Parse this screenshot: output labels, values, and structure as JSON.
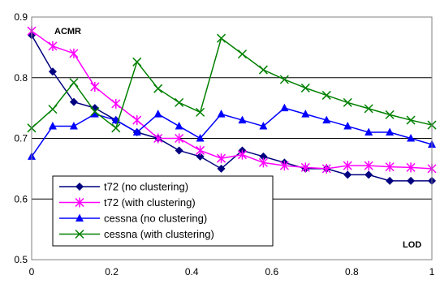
{
  "chart_data": {
    "type": "line",
    "title": "",
    "xlabel": "LOD",
    "ylabel": "ACMR",
    "xlim": [
      0,
      1
    ],
    "ylim": [
      0.5,
      0.9
    ],
    "x_ticks": [
      "0",
      "0.2",
      "0.4",
      "0.6",
      "0.8",
      "1"
    ],
    "y_ticks": [
      "0.5",
      "0.6",
      "0.7",
      "0.8",
      "0.9"
    ],
    "grid": "horizontal",
    "legend_position": "bottom-left",
    "x": [
      0,
      0.0526,
      0.1053,
      0.1579,
      0.2105,
      0.2632,
      0.3158,
      0.3684,
      0.4211,
      0.4737,
      0.5263,
      0.5789,
      0.6316,
      0.6842,
      0.7368,
      0.7895,
      0.8421,
      0.8947,
      0.9474,
      1.0
    ],
    "series": [
      {
        "name": "t72 (no clustering)",
        "color": "#000080",
        "marker": "diamond",
        "values": [
          0.87,
          0.81,
          0.76,
          0.75,
          0.73,
          0.71,
          0.7,
          0.68,
          0.67,
          0.65,
          0.68,
          0.67,
          0.66,
          0.65,
          0.65,
          0.64,
          0.64,
          0.63,
          0.63,
          0.63
        ]
      },
      {
        "name": "t72 (with clustering)",
        "color": "#ff00ff",
        "marker": "star",
        "values": [
          0.877,
          0.852,
          0.84,
          0.785,
          0.757,
          0.73,
          0.7,
          0.7,
          0.68,
          0.667,
          0.673,
          0.66,
          0.655,
          0.652,
          0.65,
          0.655,
          0.655,
          0.653,
          0.652,
          0.65
        ]
      },
      {
        "name": "cessna (no clustering)",
        "color": "#0000ff",
        "marker": "triangle",
        "values": [
          0.67,
          0.72,
          0.72,
          0.74,
          0.73,
          0.71,
          0.74,
          0.72,
          0.7,
          0.74,
          0.73,
          0.72,
          0.75,
          0.74,
          0.73,
          0.72,
          0.71,
          0.71,
          0.7,
          0.69
        ]
      },
      {
        "name": "cessna (with clustering)",
        "color": "#008000",
        "marker": "x",
        "values": [
          0.717,
          0.748,
          0.792,
          0.744,
          0.717,
          0.826,
          0.782,
          0.759,
          0.743,
          0.865,
          0.839,
          0.813,
          0.797,
          0.783,
          0.771,
          0.759,
          0.749,
          0.739,
          0.73,
          0.722
        ]
      }
    ]
  }
}
